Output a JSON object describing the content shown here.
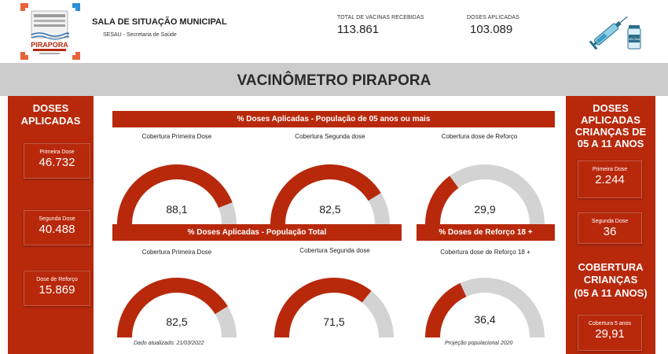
{
  "header": {
    "logo_text": "PIRAPORA",
    "org_title": "SALA DE SITUAÇÃO MUNICIPAL",
    "org_subtitle": "SESAU - Secretaria de Saúde",
    "kpis": [
      {
        "label": "TOTAL DE VACINAS RECEBIDAS",
        "value": "113.861"
      },
      {
        "label": "DOSES APLICADAS",
        "value": "103.089"
      }
    ],
    "vaccine_label": "VACINA"
  },
  "title": "VACINÔMETRO PIRAPORA",
  "left_panel": {
    "title_line1": "DOSES",
    "title_line2": "APLICADAS",
    "cards": [
      {
        "label": "Primeira Dose",
        "value": "46.732"
      },
      {
        "label": "Segunda Dose",
        "value": "40.488"
      },
      {
        "label": "Dose de Reforço",
        "value": "15.869"
      }
    ]
  },
  "right_panel": {
    "title_lines": [
      "DOSES",
      "APLICADAS",
      "CRIANÇAS DE",
      "05 A 11 ANOS"
    ],
    "cards": [
      {
        "label": "Primeira Dose",
        "value": "2.244"
      },
      {
        "label": "Segunda Dose",
        "value": "36"
      }
    ],
    "coverage_lines": [
      "COBERTURA",
      "CRIANÇAS",
      "(05 A 11 ANOS)"
    ],
    "coverage_card": {
      "label": "Cobertura 5 anos",
      "value": "29,91"
    }
  },
  "sections": {
    "pop5": "% Doses Aplicadas - População de 05 anos ou mais",
    "pop_total": "% Doses Aplicadas - População Total",
    "booster18": "% Doses de Reforço 18 +"
  },
  "gauges": {
    "g1": {
      "label": "Cobertura Primeira Dose",
      "value": 88.1,
      "display": "88,1"
    },
    "g2": {
      "label": "Cobertura Segunda dose",
      "value": 82.5,
      "display": "82,5"
    },
    "g3": {
      "label": "Cobertura dose de Reforço",
      "value": 29.9,
      "display": "29,9"
    },
    "g4": {
      "label": "Cobertura Primeira Dose",
      "value": 82.5,
      "display": "82,5"
    },
    "g5": {
      "label": "Cobertura Segunda dose",
      "value": 71.5,
      "display": "71,5"
    },
    "g6": {
      "label": "Cobertura dose de Reforço 18 +",
      "value": 36.4,
      "display": "36,4"
    }
  },
  "footnotes": {
    "updated": "Dado atualizado: 21/03/2022",
    "projection": "Projeção populacional 2020"
  },
  "colors": {
    "accent": "#b8290c",
    "gauge_track": "#d3d3d3",
    "title_bar": "#cccccc"
  }
}
